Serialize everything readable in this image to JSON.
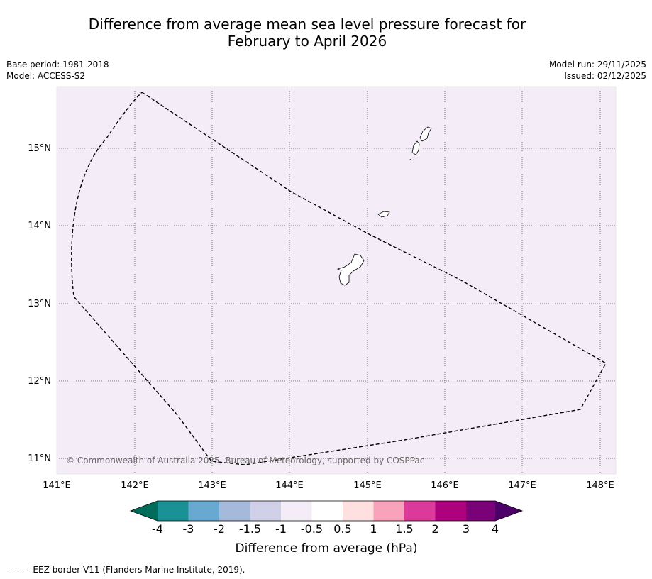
{
  "title": {
    "line1": "Difference from average mean sea level pressure forecast for",
    "line2": "February to April 2026"
  },
  "meta": {
    "base_period": "Base period: 1981-2018",
    "model": "Model: ACCESS-S2",
    "model_run": "Model run: 29/11/2025",
    "issued": "Issued: 02/12/2025"
  },
  "map": {
    "ocean_color": "#f4ecf6",
    "lon_labels": [
      "141°E",
      "142°E",
      "143°E",
      "144°E",
      "145°E",
      "146°E",
      "147°E",
      "148°E"
    ],
    "lat_labels": [
      "15°N",
      "14°N",
      "13°N",
      "12°N",
      "11°N"
    ],
    "copyright": "© Commonwealth of Australia 2025, Bureau of Meteorology, supported by COSPPac"
  },
  "colorbar": {
    "colors": [
      "#006c5a",
      "#1a9195",
      "#68a9d2",
      "#a5b9da",
      "#d0d0e8",
      "#f4ecf6",
      "#ffffff",
      "#fde0df",
      "#f9a2bc",
      "#dc3a9b",
      "#ad017d",
      "#7a0178",
      "#4c0068"
    ],
    "tick_labels": [
      "-4",
      "-3",
      "-2",
      "-1.5",
      "-1",
      "-0.5",
      "0.5",
      "1",
      "1.5",
      "2",
      "3",
      "4"
    ],
    "label": "Difference from average (hPa)"
  },
  "footer": {
    "legend": "--  --  -- EEZ border V11 (Flanders Marine Institute, 2019)."
  }
}
